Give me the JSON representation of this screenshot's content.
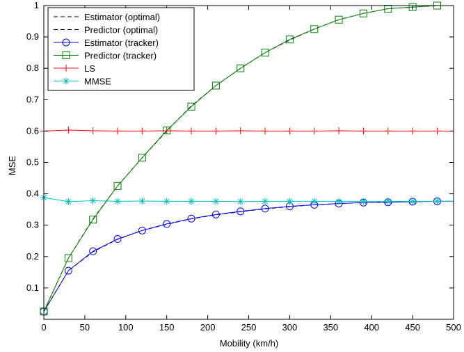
{
  "chart_data": {
    "type": "line",
    "title": "",
    "xlabel": "Mobility (km/h)",
    "ylabel": "MSE",
    "xlim": [
      0,
      500
    ],
    "ylim": [
      0,
      1
    ],
    "xticks": [
      0,
      50,
      100,
      150,
      200,
      250,
      300,
      350,
      400,
      450,
      500
    ],
    "yticks": [
      0.1,
      0.2,
      0.3,
      0.4,
      0.5,
      0.6,
      0.7,
      0.8,
      0.9,
      1
    ],
    "grid": false,
    "legend_position": "top-left",
    "x": [
      0,
      30,
      60,
      90,
      120,
      150,
      180,
      210,
      240,
      270,
      300,
      330,
      360,
      390,
      420,
      450,
      480,
      500
    ],
    "series": [
      {
        "name": "Estimator (optimal)",
        "color": "#000000",
        "linestyle": "dashed",
        "marker": "none",
        "values": [
          0.025,
          0.155,
          0.215,
          0.255,
          0.283,
          0.303,
          0.32,
          0.333,
          0.343,
          0.352,
          0.359,
          0.365,
          0.369,
          0.372,
          0.374,
          0.375,
          0.376,
          0.376
        ]
      },
      {
        "name": "Predictor (optimal)",
        "color": "#000000",
        "linestyle": "dashed",
        "marker": "none",
        "values": [
          0.025,
          0.195,
          0.32,
          0.425,
          0.515,
          0.6,
          0.68,
          0.745,
          0.8,
          0.85,
          0.89,
          0.925,
          0.955,
          0.975,
          0.99,
          0.995,
          1.0,
          1.0
        ]
      },
      {
        "name": "Estimator (tracker)",
        "color": "#0000ff",
        "linestyle": "solid",
        "marker": "circle",
        "values": [
          0.025,
          0.155,
          0.217,
          0.256,
          0.283,
          0.304,
          0.321,
          0.334,
          0.344,
          0.353,
          0.36,
          0.365,
          0.369,
          0.372,
          0.373,
          0.375,
          0.376,
          0.376
        ]
      },
      {
        "name": "Predictor (tracker)",
        "color": "#008000",
        "linestyle": "solid",
        "marker": "square",
        "values": [
          0.025,
          0.195,
          0.318,
          0.425,
          0.515,
          0.602,
          0.678,
          0.745,
          0.8,
          0.85,
          0.892,
          0.925,
          0.955,
          0.975,
          0.99,
          0.995,
          1.0,
          1.0
        ]
      },
      {
        "name": "LS",
        "color": "#ff0000",
        "linestyle": "solid",
        "marker": "plus",
        "values": [
          0.6,
          0.603,
          0.601,
          0.6,
          0.6,
          0.601,
          0.6,
          0.6,
          0.601,
          0.6,
          0.6,
          0.6,
          0.601,
          0.6,
          0.6,
          0.6,
          0.6,
          0.6
        ]
      },
      {
        "name": "MMSE",
        "color": "#00bfbf",
        "linestyle": "solid",
        "marker": "asterisk",
        "values": [
          0.388,
          0.375,
          0.378,
          0.376,
          0.377,
          0.376,
          0.376,
          0.376,
          0.375,
          0.376,
          0.376,
          0.376,
          0.376,
          0.376,
          0.376,
          0.376,
          0.376,
          0.376
        ]
      }
    ]
  }
}
